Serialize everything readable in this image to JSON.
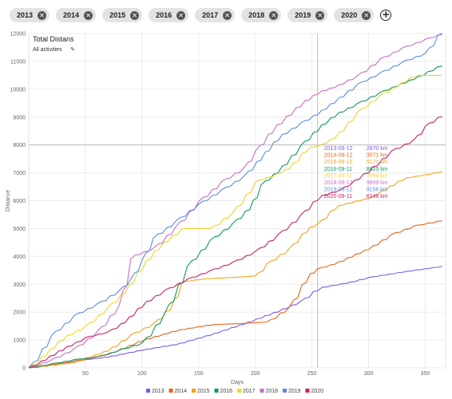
{
  "filters": {
    "chips": [
      "2013",
      "2014",
      "2015",
      "2016",
      "2017",
      "2018",
      "2019",
      "2020"
    ],
    "close_glyph": "✕",
    "add_glyph": "+"
  },
  "chart_data": {
    "type": "line",
    "title": "Total Distans",
    "subtitle": "All activities",
    "edit_icon": "pencil-icon",
    "xlabel": "Days",
    "ylabel": "Distance",
    "xlim": [
      0,
      368
    ],
    "ylim": [
      0,
      12000
    ],
    "x_ticks": [
      50,
      100,
      150,
      200,
      250,
      300,
      350
    ],
    "y_ticks": [
      0,
      1000,
      2000,
      3000,
      4000,
      5000,
      6000,
      7000,
      8000,
      9000,
      10000,
      11000,
      12000
    ],
    "grid": true,
    "legend_position": "bottom-center",
    "crosshair": {
      "x": 255,
      "y": 8000
    },
    "tooltip": [
      {
        "date": "2013-09-12",
        "value": "2870 km"
      },
      {
        "date": "2014-09-12",
        "value": "3571 km"
      },
      {
        "date": "2015-09-12",
        "value": "5171 km"
      },
      {
        "date": "2016-09-11",
        "value": "8625 km"
      },
      {
        "date": "2017-09-12",
        "value": "7959 km"
      },
      {
        "date": "2018-09-12",
        "value": "9899 km"
      },
      {
        "date": "2019-09-12",
        "value": "9156 km"
      },
      {
        "date": "2020-09-11",
        "value": "6146 km"
      }
    ],
    "series": [
      {
        "name": "2013",
        "color": "#7c5ce6",
        "points": [
          [
            0,
            0
          ],
          [
            20,
            100
          ],
          [
            40,
            250
          ],
          [
            70,
            400
          ],
          [
            100,
            650
          ],
          [
            130,
            850
          ],
          [
            160,
            1200
          ],
          [
            190,
            1600
          ],
          [
            220,
            2050
          ],
          [
            240,
            2400
          ],
          [
            255,
            2870
          ],
          [
            280,
            3050
          ],
          [
            300,
            3250
          ],
          [
            330,
            3450
          ],
          [
            365,
            3650
          ]
        ]
      },
      {
        "name": "2014",
        "color": "#e8641b",
        "points": [
          [
            0,
            0
          ],
          [
            40,
            250
          ],
          [
            70,
            500
          ],
          [
            100,
            1000
          ],
          [
            130,
            1350
          ],
          [
            160,
            1550
          ],
          [
            190,
            1600
          ],
          [
            210,
            1650
          ],
          [
            230,
            2200
          ],
          [
            245,
            3300
          ],
          [
            255,
            3571
          ],
          [
            270,
            3750
          ],
          [
            300,
            4300
          ],
          [
            320,
            4800
          ],
          [
            340,
            5100
          ],
          [
            365,
            5300
          ]
        ]
      },
      {
        "name": "2015",
        "color": "#f2a21c",
        "points": [
          [
            0,
            0
          ],
          [
            40,
            200
          ],
          [
            70,
            650
          ],
          [
            90,
            1200
          ],
          [
            110,
            1600
          ],
          [
            125,
            2200
          ],
          [
            135,
            3100
          ],
          [
            155,
            3200
          ],
          [
            180,
            3250
          ],
          [
            200,
            3300
          ],
          [
            210,
            3750
          ],
          [
            230,
            4300
          ],
          [
            245,
            5000
          ],
          [
            255,
            5171
          ],
          [
            270,
            5800
          ],
          [
            300,
            6100
          ],
          [
            330,
            6800
          ],
          [
            365,
            7050
          ]
        ]
      },
      {
        "name": "2016",
        "color": "#119a5c",
        "points": [
          [
            0,
            0
          ],
          [
            20,
            150
          ],
          [
            40,
            300
          ],
          [
            60,
            400
          ],
          [
            80,
            650
          ],
          [
            100,
            900
          ],
          [
            120,
            2000
          ],
          [
            140,
            3700
          ],
          [
            160,
            4600
          ],
          [
            180,
            5200
          ],
          [
            195,
            5800
          ],
          [
            205,
            6600
          ],
          [
            220,
            7100
          ],
          [
            240,
            8000
          ],
          [
            255,
            8625
          ],
          [
            270,
            9100
          ],
          [
            290,
            9500
          ],
          [
            310,
            9900
          ],
          [
            340,
            10400
          ],
          [
            365,
            10900
          ]
        ]
      },
      {
        "name": "2017",
        "color": "#f0d428",
        "points": [
          [
            0,
            0
          ],
          [
            30,
            1100
          ],
          [
            50,
            1500
          ],
          [
            70,
            2200
          ],
          [
            85,
            2800
          ],
          [
            100,
            3700
          ],
          [
            115,
            4400
          ],
          [
            135,
            5000
          ],
          [
            160,
            5000
          ],
          [
            180,
            5600
          ],
          [
            200,
            6700
          ],
          [
            215,
            6900
          ],
          [
            230,
            7200
          ],
          [
            245,
            7900
          ],
          [
            255,
            7959
          ],
          [
            270,
            8300
          ],
          [
            290,
            9200
          ],
          [
            310,
            9800
          ],
          [
            340,
            10500
          ],
          [
            365,
            10500
          ]
        ]
      },
      {
        "name": "2018",
        "color": "#c96ec4",
        "points": [
          [
            0,
            0
          ],
          [
            20,
            300
          ],
          [
            40,
            700
          ],
          [
            60,
            1300
          ],
          [
            80,
            2300
          ],
          [
            90,
            4000
          ],
          [
            110,
            4300
          ],
          [
            130,
            5100
          ],
          [
            150,
            6000
          ],
          [
            170,
            6700
          ],
          [
            190,
            7200
          ],
          [
            200,
            7800
          ],
          [
            215,
            8600
          ],
          [
            240,
            9500
          ],
          [
            255,
            9899
          ],
          [
            270,
            10100
          ],
          [
            290,
            10500
          ],
          [
            310,
            11100
          ],
          [
            330,
            11500
          ],
          [
            350,
            11800
          ],
          [
            365,
            12000
          ]
        ]
      },
      {
        "name": "2019",
        "color": "#5a8de3",
        "points": [
          [
            0,
            0
          ],
          [
            20,
            1200
          ],
          [
            40,
            1900
          ],
          [
            60,
            2300
          ],
          [
            80,
            2800
          ],
          [
            90,
            3200
          ],
          [
            100,
            3900
          ],
          [
            110,
            4700
          ],
          [
            130,
            5300
          ],
          [
            150,
            5900
          ],
          [
            170,
            6400
          ],
          [
            190,
            6900
          ],
          [
            205,
            7600
          ],
          [
            220,
            8300
          ],
          [
            240,
            8800
          ],
          [
            255,
            9156
          ],
          [
            270,
            9600
          ],
          [
            290,
            10200
          ],
          [
            310,
            10600
          ],
          [
            330,
            11000
          ],
          [
            350,
            11300
          ],
          [
            365,
            12200
          ]
        ]
      },
      {
        "name": "2020",
        "color": "#c8206b",
        "points": [
          [
            0,
            0
          ],
          [
            30,
            700
          ],
          [
            50,
            1100
          ],
          [
            70,
            1300
          ],
          [
            85,
            1700
          ],
          [
            100,
            2300
          ],
          [
            120,
            2800
          ],
          [
            140,
            3200
          ],
          [
            160,
            3500
          ],
          [
            180,
            3800
          ],
          [
            200,
            4200
          ],
          [
            220,
            4800
          ],
          [
            240,
            5500
          ],
          [
            255,
            6146
          ],
          [
            275,
            6400
          ],
          [
            300,
            7100
          ],
          [
            320,
            7800
          ],
          [
            340,
            8200
          ],
          [
            350,
            8700
          ],
          [
            365,
            9100
          ]
        ]
      }
    ]
  }
}
